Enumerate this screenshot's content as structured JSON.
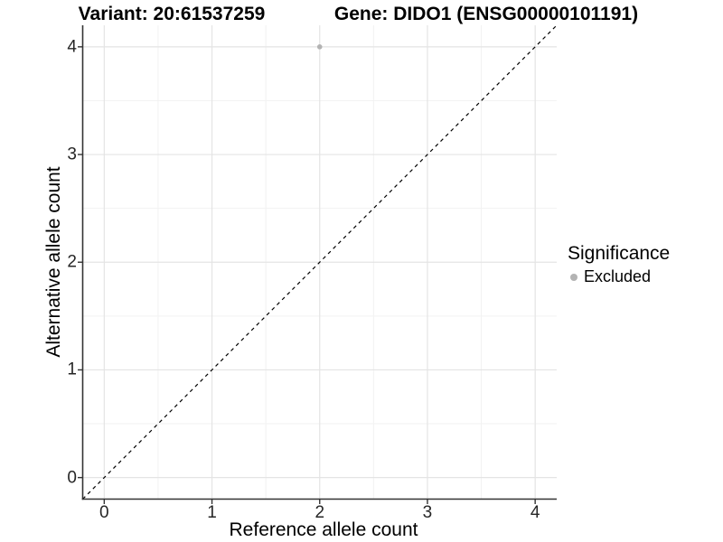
{
  "chart_data": {
    "type": "scatter",
    "title_left": "Variant: 20:61537259",
    "title_right": "Gene: DIDO1 (ENSG00000101191)",
    "xlabel": "Reference allele count",
    "ylabel": "Alternative allele count",
    "xlim": [
      -0.2,
      4.2
    ],
    "ylim": [
      -0.2,
      4.2
    ],
    "xticks": [
      0,
      1,
      2,
      3,
      4
    ],
    "yticks": [
      0,
      1,
      2,
      3,
      4
    ],
    "xminor": [
      0.5,
      1.5,
      2.5,
      3.5
    ],
    "yminor": [
      0.5,
      1.5,
      2.5,
      3.5
    ],
    "grid": true,
    "points": [
      {
        "x": 2,
        "y": 4,
        "series": "Excluded"
      }
    ],
    "reference_line": {
      "slope": 1,
      "intercept": 0,
      "style": "dashed"
    },
    "legend": {
      "title": "Significance",
      "position": "right",
      "entries": [
        {
          "label": "Excluded",
          "marker": "circle",
          "color": "#b3b3b3"
        }
      ]
    },
    "colors": {
      "background": "#ffffff",
      "major_grid": "#e4e4e4",
      "minor_grid": "#f2f2f2",
      "axis_line": "#333333",
      "tick_mark": "#333333",
      "point": "#b3b3b3",
      "reference_line": "#000000",
      "text": "#000000"
    }
  }
}
